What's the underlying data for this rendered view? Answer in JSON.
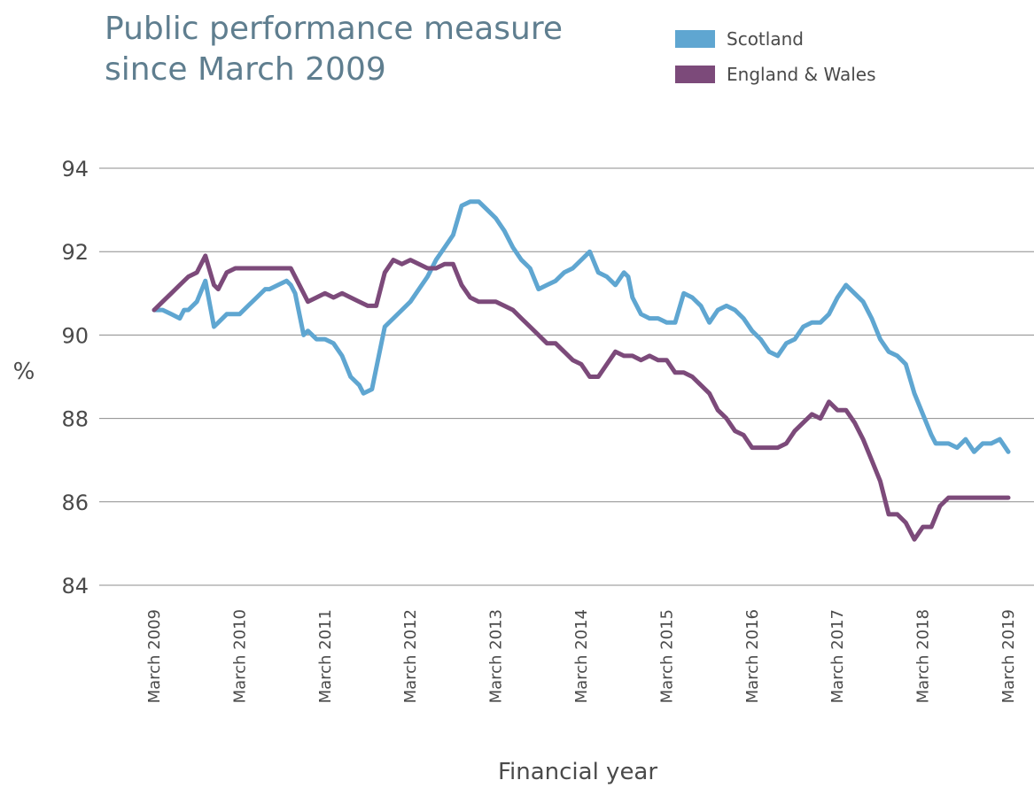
{
  "chart_data": {
    "type": "line",
    "title_lines": [
      "Public performance measure",
      "since March 2009"
    ],
    "xlabel": "Financial year",
    "ylabel": "%",
    "ylim": [
      84,
      94
    ],
    "yticks": [
      84,
      86,
      88,
      90,
      92,
      94
    ],
    "xlim": [
      2009,
      2019
    ],
    "xticks": [
      {
        "value": 2009,
        "label": "March 2009"
      },
      {
        "value": 2010,
        "label": "March 2010"
      },
      {
        "value": 2011,
        "label": "March 2011"
      },
      {
        "value": 2012,
        "label": "March 2012"
      },
      {
        "value": 2013,
        "label": "March 2013"
      },
      {
        "value": 2014,
        "label": "March 2014"
      },
      {
        "value": 2015,
        "label": "March 2015"
      },
      {
        "value": 2016,
        "label": "March 2016"
      },
      {
        "value": 2017,
        "label": "March 2017"
      },
      {
        "value": 2018,
        "label": "March 2018"
      },
      {
        "value": 2019,
        "label": "March 2019"
      }
    ],
    "grid": "horizontal",
    "legend_position": "top-right",
    "series": [
      {
        "name": "Scotland",
        "color": "#5fa6d1",
        "x": [
          2009.0,
          2009.1,
          2009.2,
          2009.3,
          2009.35,
          2009.4,
          2009.5,
          2009.6,
          2009.7,
          2009.75,
          2009.85,
          2009.95,
          2010.0,
          2010.1,
          2010.2,
          2010.3,
          2010.35,
          2010.45,
          2010.55,
          2010.6,
          2010.65,
          2010.75,
          2010.8,
          2010.9,
          2011.0,
          2011.1,
          2011.2,
          2011.3,
          2011.4,
          2011.45,
          2011.55,
          2011.6,
          2011.7,
          2011.8,
          2011.9,
          2012.0,
          2012.1,
          2012.2,
          2012.3,
          2012.4,
          2012.5,
          2012.6,
          2012.7,
          2012.8,
          2012.9,
          2013.0,
          2013.1,
          2013.2,
          2013.3,
          2013.4,
          2013.5,
          2013.6,
          2013.7,
          2013.8,
          2013.9,
          2014.0,
          2014.1,
          2014.2,
          2014.3,
          2014.4,
          2014.5,
          2014.55,
          2014.6,
          2014.7,
          2014.8,
          2014.9,
          2015.0,
          2015.1,
          2015.2,
          2015.3,
          2015.4,
          2015.5,
          2015.6,
          2015.7,
          2015.8,
          2015.9,
          2016.0,
          2016.1,
          2016.2,
          2016.3,
          2016.4,
          2016.5,
          2016.6,
          2016.7,
          2016.8,
          2016.9,
          2017.0,
          2017.1,
          2017.2,
          2017.3,
          2017.4,
          2017.5,
          2017.6,
          2017.7,
          2017.8,
          2017.9,
          2018.0,
          2018.1,
          2018.15,
          2018.2,
          2018.3,
          2018.4,
          2018.5,
          2018.6,
          2018.7,
          2018.8,
          2018.9,
          2019.0
        ],
        "values": [
          90.6,
          90.6,
          90.5,
          90.4,
          90.6,
          90.6,
          90.8,
          91.3,
          90.2,
          90.3,
          90.5,
          90.5,
          90.5,
          90.7,
          90.9,
          91.1,
          91.1,
          91.2,
          91.3,
          91.2,
          91.0,
          90.0,
          90.1,
          89.9,
          89.9,
          89.8,
          89.5,
          89.0,
          88.8,
          88.6,
          88.7,
          89.2,
          90.2,
          90.4,
          90.6,
          90.8,
          91.1,
          91.4,
          91.8,
          92.1,
          92.4,
          93.1,
          93.2,
          93.2,
          93.0,
          92.8,
          92.5,
          92.1,
          91.8,
          91.6,
          91.1,
          91.2,
          91.3,
          91.5,
          91.6,
          91.8,
          92.0,
          91.5,
          91.4,
          91.2,
          91.5,
          91.4,
          90.9,
          90.5,
          90.4,
          90.4,
          90.3,
          90.3,
          91.0,
          90.9,
          90.7,
          90.3,
          90.6,
          90.7,
          90.6,
          90.4,
          90.1,
          89.9,
          89.6,
          89.5,
          89.8,
          89.9,
          90.2,
          90.3,
          90.3,
          90.5,
          90.9,
          91.2,
          91.0,
          90.8,
          90.4,
          89.9,
          89.6,
          89.5,
          89.3,
          88.6,
          88.1,
          87.6,
          87.4,
          87.4,
          87.4,
          87.3,
          87.5,
          87.2,
          87.4,
          87.4,
          87.5,
          87.2
        ],
        "values_note": ""
      },
      {
        "name": "England & Wales",
        "color": "#7c4a7a",
        "x": [
          2009.0,
          2009.1,
          2009.2,
          2009.3,
          2009.4,
          2009.5,
          2009.6,
          2009.7,
          2009.75,
          2009.85,
          2009.95,
          2010.0,
          2010.2,
          2010.4,
          2010.6,
          2010.7,
          2010.8,
          2010.9,
          2011.0,
          2011.1,
          2011.2,
          2011.3,
          2011.4,
          2011.5,
          2011.6,
          2011.7,
          2011.8,
          2011.9,
          2012.0,
          2012.1,
          2012.2,
          2012.3,
          2012.4,
          2012.5,
          2012.6,
          2012.7,
          2012.8,
          2012.9,
          2013.0,
          2013.1,
          2013.2,
          2013.3,
          2013.4,
          2013.5,
          2013.6,
          2013.7,
          2013.8,
          2013.9,
          2014.0,
          2014.1,
          2014.2,
          2014.3,
          2014.4,
          2014.5,
          2014.6,
          2014.7,
          2014.8,
          2014.9,
          2015.0,
          2015.1,
          2015.2,
          2015.3,
          2015.4,
          2015.5,
          2015.6,
          2015.7,
          2015.8,
          2015.9,
          2016.0,
          2016.1,
          2016.2,
          2016.3,
          2016.4,
          2016.5,
          2016.6,
          2016.7,
          2016.8,
          2016.9,
          2017.0,
          2017.1,
          2017.2,
          2017.3,
          2017.4,
          2017.5,
          2017.6,
          2017.7,
          2017.8,
          2017.9,
          2018.0,
          2018.1,
          2018.2,
          2018.3,
          2018.4,
          2018.5,
          2018.6,
          2018.7,
          2018.8,
          2018.9,
          2019.0
        ],
        "values": [
          90.6,
          90.8,
          91.0,
          91.2,
          91.4,
          91.5,
          91.9,
          91.2,
          91.1,
          91.5,
          91.6,
          91.6,
          91.6,
          91.6,
          91.6,
          91.2,
          90.8,
          90.9,
          91.0,
          90.9,
          91.0,
          90.9,
          90.8,
          90.7,
          90.7,
          91.5,
          91.8,
          91.7,
          91.8,
          91.7,
          91.6,
          91.6,
          91.7,
          91.7,
          91.2,
          90.9,
          90.8,
          90.8,
          90.8,
          90.7,
          90.6,
          90.4,
          90.2,
          90.0,
          89.8,
          89.8,
          89.6,
          89.4,
          89.3,
          89.0,
          89.0,
          89.3,
          89.6,
          89.5,
          89.5,
          89.4,
          89.5,
          89.4,
          89.4,
          89.1,
          89.1,
          89.0,
          88.8,
          88.6,
          88.2,
          88.0,
          87.7,
          87.6,
          87.3,
          87.3,
          87.3,
          87.3,
          87.4,
          87.7,
          87.9,
          88.1,
          88.0,
          88.4,
          88.2,
          88.2,
          87.9,
          87.5,
          87.0,
          86.5,
          85.7,
          85.7,
          85.5,
          85.1,
          85.4,
          85.4,
          85.9,
          86.1,
          86.1,
          86.1,
          86.1,
          86.1,
          86.1,
          86.1,
          86.1
        ],
        "values_note": ""
      }
    ]
  }
}
